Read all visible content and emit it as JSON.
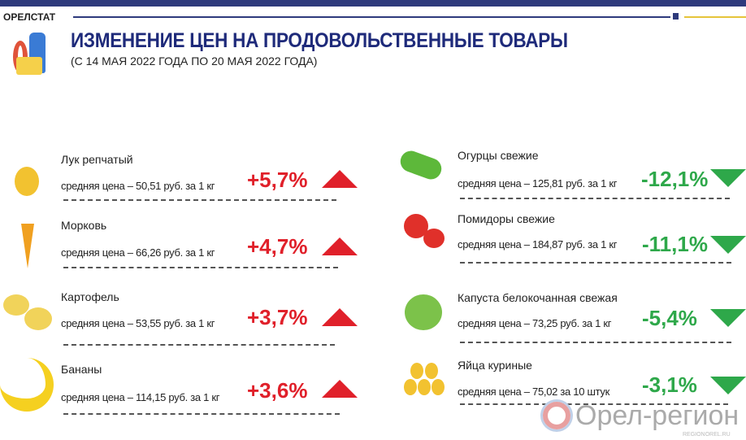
{
  "header": {
    "brand": "ОРЕЛСТАТ",
    "title": "ИЗМЕНЕНИЕ ЦЕН НА ПРОДОВОЛЬСТВЕННЫЕ ТОВАРЫ",
    "subtitle": "(С 14 МАЯ 2022 ГОДА ПО 20 МАЯ 2022 ГОДА)"
  },
  "colors": {
    "up": "#e0202a",
    "down": "#2ea84a",
    "brand": "#1e2a7a"
  },
  "left": [
    {
      "name": "Лук репчатый",
      "price": "средняя цена – 50,51 руб. за 1 кг",
      "change": "+5,7%",
      "icon": "onion-icon"
    },
    {
      "name": "Морковь",
      "price": "средняя цена –  66,26 руб. за 1 кг",
      "change": "+4,7%",
      "icon": "carrot-icon"
    },
    {
      "name": "Картофель",
      "price": "средняя цена – 53,55 руб. за 1 кг",
      "change": "+3,7%",
      "icon": "potato-icon"
    },
    {
      "name": "Бананы",
      "price": "средняя цена – 114,15 руб. за 1 кг",
      "change": "+3,6%",
      "icon": "banana-icon"
    }
  ],
  "right": [
    {
      "name": "Огурцы свежие",
      "price": "средняя цена – 125,81 руб. за 1 кг",
      "change": "-12,1%",
      "icon": "cucumber-icon"
    },
    {
      "name": "Помидоры свежие",
      "price": "средняя цена – 184,87 руб. за 1 кг",
      "change": "-11,1%",
      "icon": "tomato-icon"
    },
    {
      "name": "Капуста белокочанная свежая",
      "price": "средняя цена – 73,25 руб. за 1 кг",
      "change": "-5,4%",
      "icon": "cabbage-icon"
    },
    {
      "name": "Яйца куриные",
      "price": "средняя цена – 75,02 за 10 штук",
      "change": "-3,1%",
      "icon": "eggs-icon"
    }
  ],
  "watermark": {
    "text": "Орел-регион",
    "sub": "REGIONOREL.RU"
  }
}
